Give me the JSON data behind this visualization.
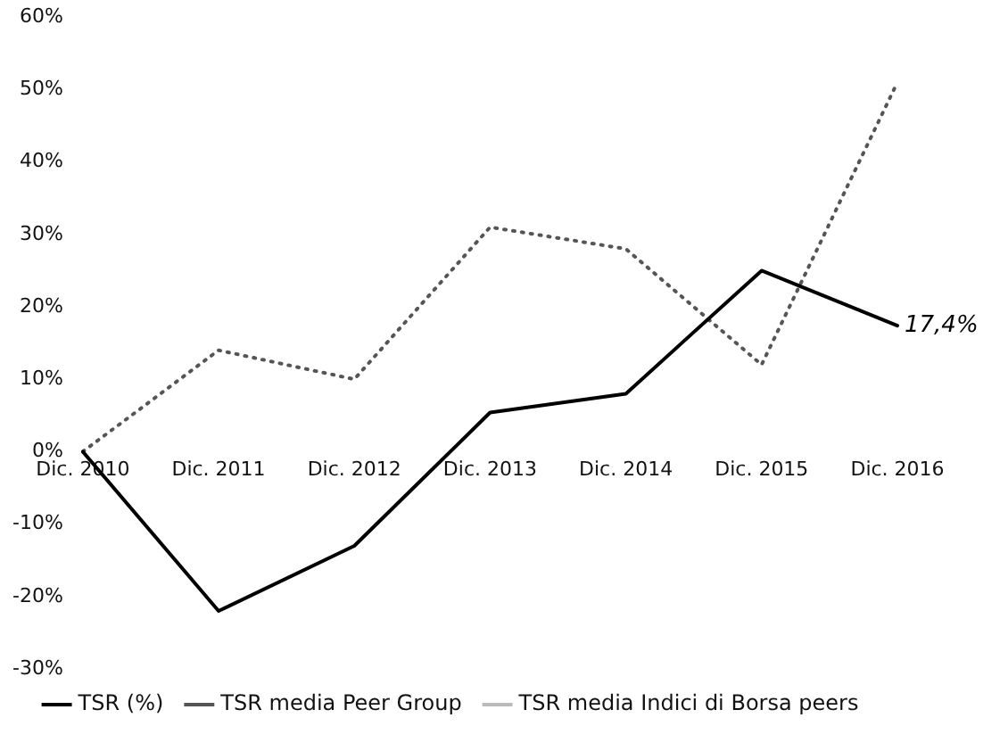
{
  "chart_data": {
    "type": "line",
    "categories": [
      "Dic. 2010",
      "Dic. 2011",
      "Dic. 2012",
      "Dic. 2013",
      "Dic. 2014",
      "Dic. 2015",
      "Dic. 2016"
    ],
    "series": [
      {
        "name": "TSR (%)",
        "color": "#000000",
        "line_style": "solid",
        "values": [
          0,
          -22,
          -13,
          5.4,
          8,
          25,
          17.4
        ],
        "value_labels": [
          null,
          null,
          null,
          null,
          null,
          null,
          "17,4%"
        ]
      },
      {
        "name": "TSR media Peer Group",
        "color": "#555555",
        "line_style": "dotted",
        "values": [
          0,
          14,
          10,
          31,
          28,
          12,
          51
        ]
      },
      {
        "name": "TSR media Indici di Borsa peers",
        "color": "#bbbbbb",
        "line_style": "dotted",
        "values": [
          null,
          null,
          null,
          null,
          null,
          null,
          null
        ]
      }
    ],
    "ylim": [
      -30,
      60
    ],
    "yticks": [
      {
        "value": -30,
        "label": "-30%"
      },
      {
        "value": -20,
        "label": "-20%"
      },
      {
        "value": -10,
        "label": "-10%"
      },
      {
        "value": 0,
        "label": "0%"
      },
      {
        "value": 10,
        "label": "10%"
      },
      {
        "value": 20,
        "label": "20%"
      },
      {
        "value": 30,
        "label": "30%"
      },
      {
        "value": 40,
        "label": "40%"
      },
      {
        "value": 50,
        "label": "50%"
      },
      {
        "value": 60,
        "label": "60%"
      }
    ],
    "grid": false,
    "legend": "bottom",
    "marker": "none"
  }
}
